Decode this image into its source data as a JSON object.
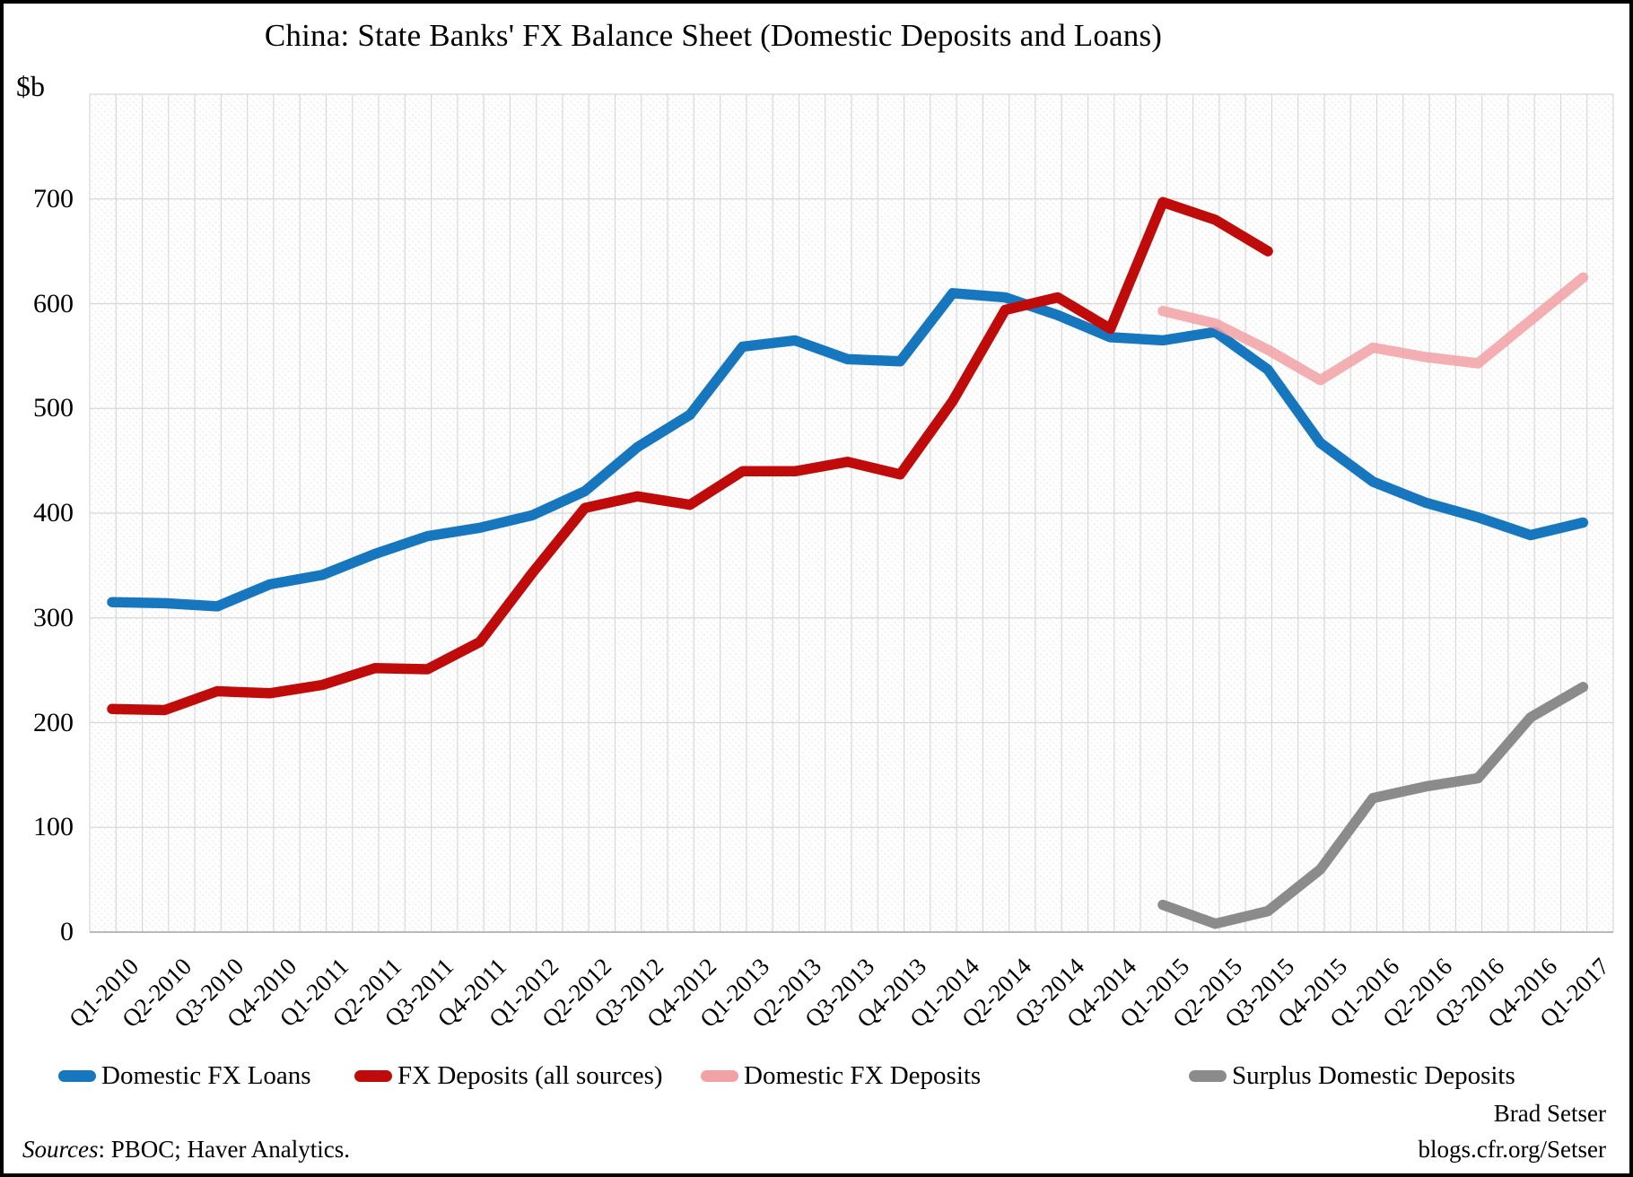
{
  "title": "China: State Banks' FX Balance Sheet (Domestic Deposits and Loans)",
  "y_axis_unit_label": "$b",
  "footer": {
    "sources_label_italic": "Sources",
    "sources_text": ": PBOC; Haver Analytics.",
    "credit_name": "Brad Setser",
    "credit_site": "blogs.cfr.org/Setser"
  },
  "colors": {
    "loans_blue": "#1777be",
    "deposits_dark_red": "#c00b0b",
    "domestic_deposits_pink": "#f2a1a4",
    "surplus_gray": "#8b8b8b",
    "gridline": "#d8d8d8",
    "axis_line": "#b9b9b9",
    "hatch": "#e0e0e0"
  },
  "chart_data": {
    "type": "line",
    "title": "China: State Banks' FX Balance Sheet (Domestic Deposits and Loans)",
    "xlabel": "",
    "ylabel": "$b",
    "ylim": [
      0,
      800
    ],
    "y_ticks": [
      0,
      100,
      200,
      300,
      400,
      500,
      600,
      700
    ],
    "grid": true,
    "legend_position": "bottom",
    "categories": [
      "Q1-2010",
      "Q2-2010",
      "Q3-2010",
      "Q4-2010",
      "Q1-2011",
      "Q2-2011",
      "Q3-2011",
      "Q4-2011",
      "Q1-2012",
      "Q2-2012",
      "Q3-2012",
      "Q4-2012",
      "Q1-2013",
      "Q2-2013",
      "Q3-2013",
      "Q4-2013",
      "Q1-2014",
      "Q2-2014",
      "Q3-2014",
      "Q4-2014",
      "Q1-2015",
      "Q2-2015",
      "Q3-2015",
      "Q4-2015",
      "Q1-2016",
      "Q2-2016",
      "Q3-2016",
      "Q4-2016",
      "Q1-2017"
    ],
    "series": [
      {
        "name": "Domestic FX Loans",
        "color": "#1777be",
        "opacity": 1,
        "start_index": 0,
        "values": [
          315,
          314,
          311,
          332,
          341,
          361,
          378,
          386,
          398,
          421,
          463,
          494,
          559,
          565,
          547,
          545,
          610,
          606,
          589,
          568,
          565,
          573,
          537,
          467,
          430,
          410,
          396,
          379,
          391
        ]
      },
      {
        "name": "FX Deposits (all sources)",
        "color": "#c00b0b",
        "opacity": 1,
        "start_index": 0,
        "values": [
          213,
          212,
          230,
          228,
          236,
          252,
          251,
          277,
          343,
          405,
          416,
          408,
          440,
          440,
          449,
          437,
          507,
          594,
          606,
          576,
          697,
          680,
          650
        ]
      },
      {
        "name": "Domestic FX Deposits",
        "color": "#f2a1a4",
        "opacity": 0.85,
        "start_index": 20,
        "values": [
          593,
          581,
          556,
          527,
          558,
          549,
          543,
          584,
          625
        ]
      },
      {
        "name": "Surplus Domestic Deposits",
        "color": "#8b8b8b",
        "opacity": 1,
        "start_index": 20,
        "values": [
          26,
          8,
          20,
          60,
          128,
          139,
          147,
          205,
          234
        ]
      }
    ]
  }
}
